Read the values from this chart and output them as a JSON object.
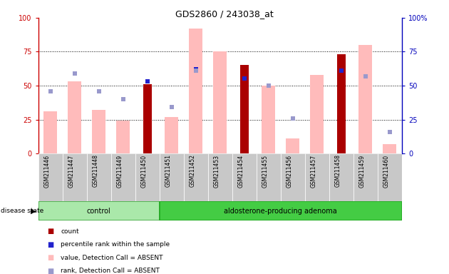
{
  "title": "GDS2860 / 243038_at",
  "samples": [
    "GSM211446",
    "GSM211447",
    "GSM211448",
    "GSM211449",
    "GSM211450",
    "GSM211451",
    "GSM211452",
    "GSM211453",
    "GSM211454",
    "GSM211455",
    "GSM211456",
    "GSM211457",
    "GSM211458",
    "GSM211459",
    "GSM211460"
  ],
  "control_count": 5,
  "pink_bar_values": [
    31,
    53,
    32,
    24,
    0,
    27,
    92,
    75,
    0,
    50,
    11,
    58,
    0,
    80,
    7
  ],
  "red_bar_values": [
    0,
    0,
    0,
    0,
    51,
    0,
    0,
    0,
    65,
    0,
    0,
    0,
    73,
    0,
    0
  ],
  "blue_square_values": [
    0,
    0,
    0,
    0,
    53,
    0,
    62,
    0,
    55,
    0,
    0,
    0,
    61,
    57,
    0
  ],
  "lavender_square_values": [
    46,
    59,
    46,
    40,
    0,
    34,
    61,
    0,
    0,
    50,
    26,
    0,
    0,
    57,
    16
  ],
  "yticks": [
    0,
    25,
    50,
    75,
    100
  ],
  "colors": {
    "red_bar": "#aa0000",
    "pink_bar": "#ffbbbb",
    "blue_square": "#2222cc",
    "lavender_square": "#9999cc",
    "axis_left_color": "#cc0000",
    "axis_right_color": "#0000bb"
  },
  "legend_entries": [
    {
      "label": "count",
      "color": "#aa0000"
    },
    {
      "label": "percentile rank within the sample",
      "color": "#2222cc"
    },
    {
      "label": "value, Detection Call = ABSENT",
      "color": "#ffbbbb"
    },
    {
      "label": "rank, Detection Call = ABSENT",
      "color": "#9999cc"
    }
  ]
}
